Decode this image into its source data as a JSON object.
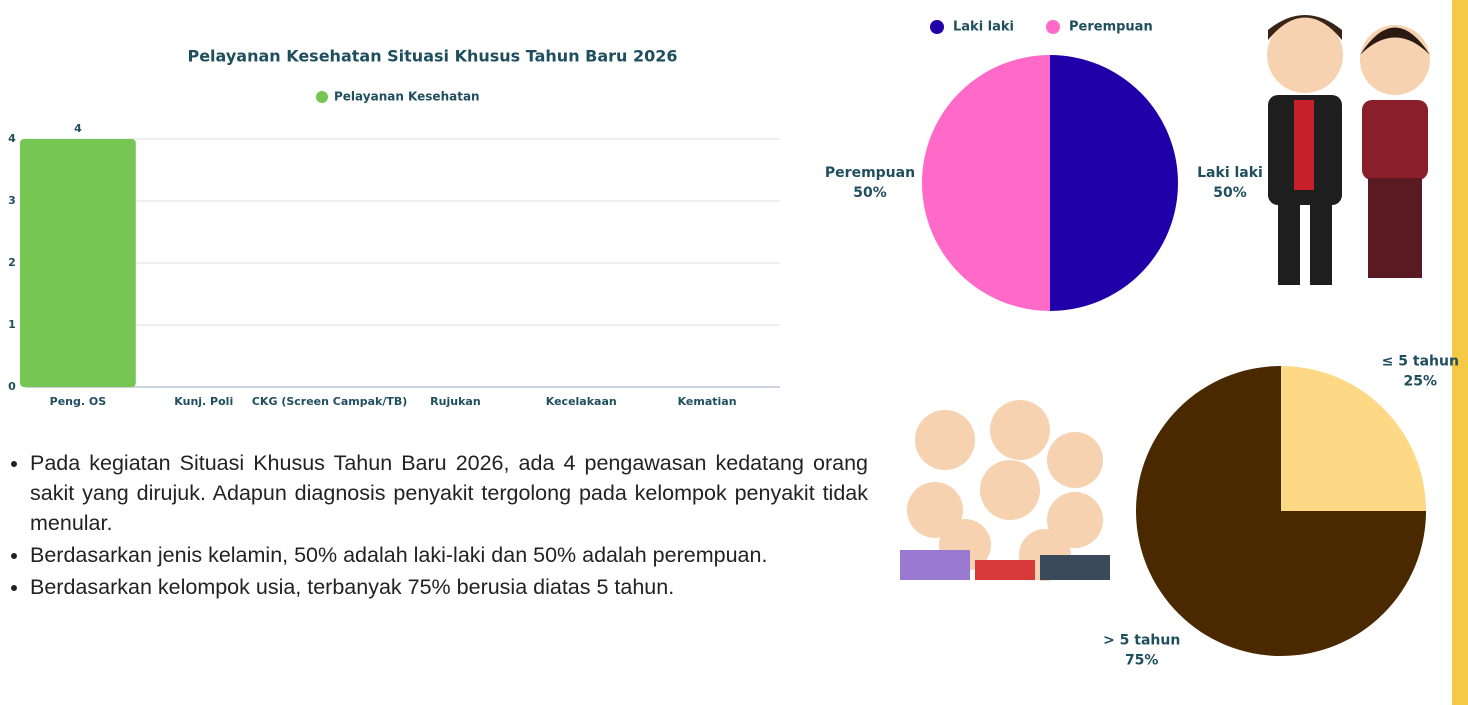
{
  "chart_data": [
    {
      "type": "bar",
      "title": "Pelayanan Kesehatan Situasi Khusus Tahun Baru 2026",
      "categories": [
        "Peng. OS",
        "Kunj. Poli",
        "CKG (Screen Campak/TB)",
        "Rujukan",
        "Kecelakaan",
        "Kematian"
      ],
      "series": [
        {
          "name": "Pelayanan Kesehatan",
          "color": "#76c653",
          "values": [
            4,
            0,
            0,
            0,
            0,
            0
          ]
        }
      ],
      "ylim": [
        0,
        4
      ],
      "yticks": [
        0,
        1,
        2,
        3,
        4
      ],
      "grid": true,
      "legend": "top"
    },
    {
      "type": "pie",
      "categories": [
        "Laki laki",
        "Perempuan"
      ],
      "values": [
        50,
        50
      ],
      "value_labels": [
        "50%",
        "50%"
      ],
      "colors": [
        "#2000a8",
        "#ff69c8"
      ],
      "legend": "top"
    },
    {
      "type": "pie",
      "categories": [
        "≤ 5 tahun",
        "> 5 tahun"
      ],
      "values": [
        25,
        75
      ],
      "value_labels": [
        "25%",
        "75%"
      ],
      "colors": [
        "#fdd985",
        "#4a2800"
      ]
    }
  ],
  "bullets": [
    "Pada kegiatan Situasi Khusus Tahun Baru 2026, ada 4 pengawasan kedatang orang sakit yang dirujuk. Adapun diagnosis penyakit tergolong pada kelompok penyakit tidak menular.",
    "Berdasarkan jenis kelamin, 50% adalah laki-laki dan 50% adalah perempuan.",
    "Berdasarkan kelompok usia, terbanyak 75% berusia diatas 5 tahun."
  ]
}
